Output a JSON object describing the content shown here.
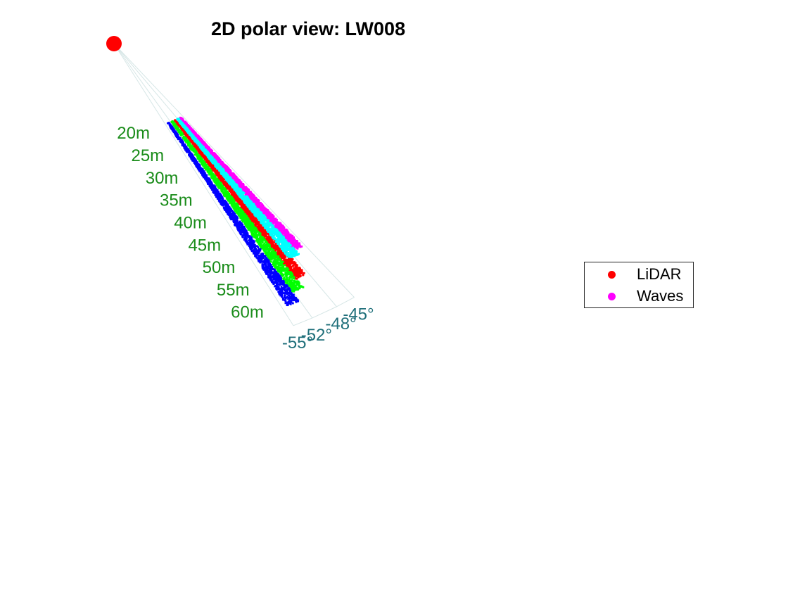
{
  "title": "2D polar view: LW008",
  "legend": [
    {
      "label": "LiDAR",
      "color": "#ff0000"
    },
    {
      "label": "Waves",
      "color": "#ff00ff"
    }
  ],
  "chart_data": {
    "type": "scatter",
    "title": "2D polar view: LW008",
    "projection": "polar",
    "range_tick_labels": [
      "20m",
      "25m",
      "30m",
      "35m",
      "40m",
      "45m",
      "50m",
      "55m",
      "60m"
    ],
    "range_ticks_m": [
      20,
      25,
      30,
      35,
      40,
      45,
      50,
      55,
      60
    ],
    "angle_tick_labels": [
      "-45°",
      "-48°",
      "-52°",
      "-55°"
    ],
    "angle_ticks_deg": [
      -45,
      -48,
      -52,
      -55
    ],
    "range_lim": [
      20,
      60
    ],
    "angle_lim": [
      -55,
      -45
    ],
    "origin_marker_color": "#ff0000",
    "grid": true,
    "grid_color": "#d6e6e6",
    "range_label_color": "#1a8c1a",
    "angle_label_color": "#1f6f7a",
    "legend_position": "right",
    "series": [
      {
        "name": "LiDAR",
        "color": "#ff0000",
        "approx_angle_deg": -49.5,
        "approx_range_m": [
          18,
          55
        ]
      },
      {
        "name": "Waves",
        "color": "#ff00ff",
        "approx_angle_deg": -46.5,
        "approx_range_m": [
          18,
          50
        ]
      },
      {
        "color": "#00ffff",
        "approx_angle_deg": -48.0,
        "approx_range_m": [
          18,
          51
        ]
      },
      {
        "color": "#00ff00",
        "approx_angle_deg": -51.2,
        "approx_range_m": [
          18,
          57
        ]
      },
      {
        "color": "#0000ff",
        "approx_angle_deg": -53.2,
        "approx_range_m": [
          18,
          59
        ]
      }
    ]
  }
}
